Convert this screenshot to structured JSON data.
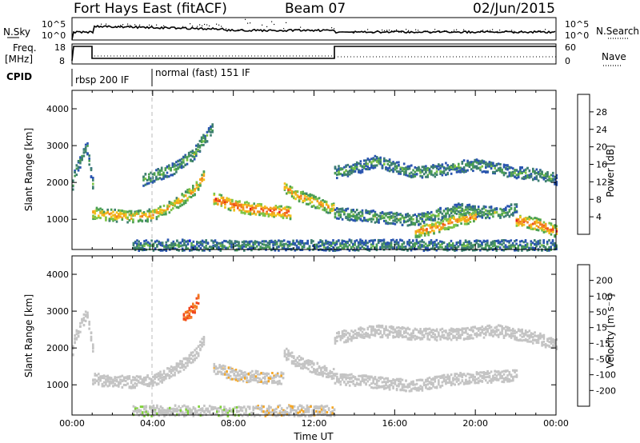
{
  "header": {
    "station": "Fort Hays East (fitACF)",
    "beam": "Beam 07",
    "date": "02/Jun/2015"
  },
  "side_labels": {
    "nsky": "N.Sky",
    "freq": "Freq.",
    "freq_unit": "[MHz]",
    "cpid": "CPID",
    "nsearch": "N.Search",
    "nave": "Nave"
  },
  "noise_axis": {
    "left_top": "10^5",
    "left_bottom": "10^0",
    "right_top": "10^5",
    "right_bottom": "10^0"
  },
  "freq_axis": {
    "left_top": "18",
    "left_bottom": "8",
    "right_top": "60",
    "right_bottom": "0"
  },
  "cpid_segments": [
    {
      "label": "rbsp 200 IF",
      "start_hour": 0
    },
    {
      "label": "normal (fast) 151 IF",
      "start_hour": 4
    }
  ],
  "colors": {
    "power_scale": [
      "#1c1cf0",
      "#2a55b0",
      "#3e7f70",
      "#4b9f53",
      "#7ec447",
      "#f2c21b",
      "#f5a11d",
      "#f27c1e",
      "#f24f1c",
      "#e21b1b"
    ],
    "velocity_scale": [
      "#e8171b",
      "#f2471e",
      "#f27d22",
      "#f5a623",
      "#c4c4c4",
      "#c4c4c4",
      "#7fd138",
      "#3bbf45",
      "#2e7f6e",
      "#2d3fbd"
    ]
  },
  "chart_data": [
    {
      "type": "heatmap",
      "quantity": "Power",
      "ylabel": "Slant Range [km]",
      "xlabel": "",
      "xlim": [
        0,
        24
      ],
      "ylim": [
        180,
        4500
      ],
      "yticks": [
        1000,
        2000,
        3000,
        4000
      ],
      "colorbar_label": "Power [dB]",
      "colorbar_ticks": [
        "4",
        "8",
        "12",
        "16",
        "20",
        "24",
        "28"
      ],
      "colorbar_range": [
        0,
        30
      ],
      "bands": [
        {
          "t": [
            0,
            0.05,
            0.7,
            1.0
          ],
          "r": [
            2000,
            2200,
            3000,
            2000
          ],
          "val": 8
        },
        {
          "t": [
            1,
            1.5,
            3,
            4,
            5,
            6,
            6.5
          ],
          "r": [
            1200,
            1150,
            1100,
            1150,
            1400,
            1800,
            2200
          ],
          "val": 18
        },
        {
          "t": [
            3.5,
            5,
            6,
            6.5,
            7
          ],
          "r": [
            2100,
            2400,
            2800,
            3200,
            3500
          ],
          "val": 9
        },
        {
          "t": [
            7,
            8,
            9,
            10,
            10.8
          ],
          "r": [
            1600,
            1400,
            1300,
            1250,
            1200
          ],
          "val": 24
        },
        {
          "t": [
            10.5,
            11,
            12,
            13
          ],
          "r": [
            1900,
            1700,
            1500,
            1300
          ],
          "val": 18
        },
        {
          "t": [
            13,
            14,
            15,
            16,
            17,
            18,
            19,
            20,
            21,
            22,
            23,
            24
          ],
          "r": [
            2300,
            2400,
            2600,
            2450,
            2300,
            2350,
            2450,
            2500,
            2400,
            2300,
            2250,
            2100
          ],
          "val": 8
        },
        {
          "t": [
            13,
            15,
            17,
            18,
            19,
            20,
            21,
            22
          ],
          "r": [
            1200,
            1100,
            1000,
            1150,
            1300,
            1250,
            1200,
            1300
          ],
          "val": 9
        },
        {
          "t": [
            17,
            18,
            19,
            20
          ],
          "r": [
            700,
            800,
            1000,
            1100
          ],
          "val": 20
        },
        {
          "t": [
            22,
            23,
            24
          ],
          "r": [
            1000,
            900,
            700
          ],
          "val": 22
        },
        {
          "t": [
            3,
            5,
            7,
            9,
            10.5,
            13,
            24
          ],
          "r": [
            300,
            320,
            300,
            280,
            300,
            320,
            300
          ],
          "val": 7
        }
      ]
    },
    {
      "type": "heatmap",
      "quantity": "Velocity",
      "ylabel": "Slant Range [km]",
      "xlabel": "Time UT",
      "xlim": [
        0,
        24
      ],
      "ylim": [
        180,
        4500
      ],
      "yticks": [
        1000,
        2000,
        3000,
        4000
      ],
      "xticks": [
        "00:00",
        "04:00",
        "08:00",
        "12:00",
        "16:00",
        "20:00",
        "00:00"
      ],
      "colorbar_label": "Velocity [m s⁻¹]",
      "colorbar_ticks": [
        "-200",
        "-100",
        "-50",
        "-15",
        "15",
        "50",
        "100",
        "200"
      ],
      "colorbar_range": [
        -250,
        250
      ],
      "bands": [
        {
          "t": [
            0,
            0.05,
            0.7,
            1.0
          ],
          "r": [
            2000,
            2200,
            3000,
            2000
          ],
          "val": 0
        },
        {
          "t": [
            1,
            1.5,
            3,
            4,
            5,
            6,
            6.5
          ],
          "r": [
            1200,
            1150,
            1100,
            1150,
            1400,
            1800,
            2200
          ],
          "val": 0
        },
        {
          "t": [
            5.5,
            6,
            6.3
          ],
          "r": [
            2800,
            3100,
            3400
          ],
          "val": -150
        },
        {
          "t": [
            7,
            8,
            9,
            10.5
          ],
          "r": [
            1500,
            1300,
            1250,
            1200
          ],
          "val": -40
        },
        {
          "t": [
            10.5,
            11,
            12,
            13
          ],
          "r": [
            1900,
            1700,
            1500,
            1300
          ],
          "val": 30
        },
        {
          "t": [
            13,
            15,
            17,
            19,
            21,
            23,
            24
          ],
          "r": [
            2300,
            2500,
            2400,
            2400,
            2500,
            2300,
            2100
          ],
          "val": 0
        },
        {
          "t": [
            13,
            15,
            17,
            19,
            21,
            22
          ],
          "r": [
            1200,
            1100,
            1000,
            1200,
            1250,
            1300
          ],
          "val": 0
        },
        {
          "t": [
            3,
            5,
            7,
            9
          ],
          "r": [
            300,
            320,
            300,
            280
          ],
          "val": 40
        },
        {
          "t": [
            9,
            11,
            13
          ],
          "r": [
            300,
            320,
            300
          ],
          "val": -40
        }
      ]
    }
  ]
}
